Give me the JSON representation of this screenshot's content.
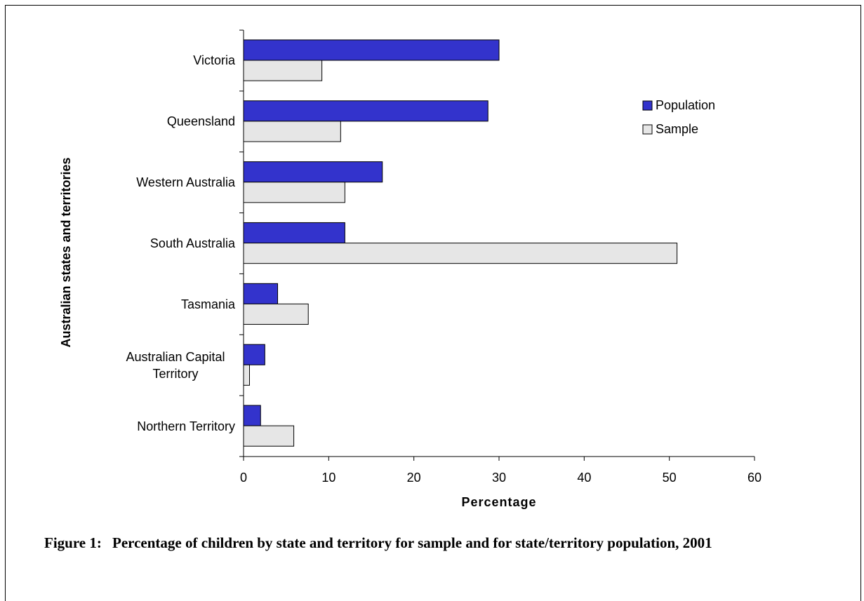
{
  "chart_data": {
    "type": "bar",
    "orientation": "horizontal",
    "y_label": "Australian states and territories",
    "x_label": "Percentage",
    "caption_label": "Figure 1:",
    "caption": "Percentage of children by state and territory for sample and for state/territory population, 2001",
    "categories": [
      "Victoria",
      "Queensland",
      "Western Australia",
      "South Australia",
      "Tasmania",
      "Australian Capital Territory",
      "Northern Territory"
    ],
    "series": [
      {
        "name": "Population",
        "color": "#3333cc",
        "values": [
          30.0,
          28.7,
          16.3,
          11.9,
          4.0,
          2.5,
          2.0
        ]
      },
      {
        "name": "Sample",
        "color": "#e6e6e6",
        "values": [
          9.2,
          11.4,
          11.9,
          50.9,
          7.6,
          0.7,
          5.9
        ]
      }
    ],
    "xlim": [
      0,
      60
    ],
    "xticks": [
      0,
      10,
      20,
      30,
      40,
      50,
      60
    ],
    "grid": false,
    "legend": "right"
  }
}
